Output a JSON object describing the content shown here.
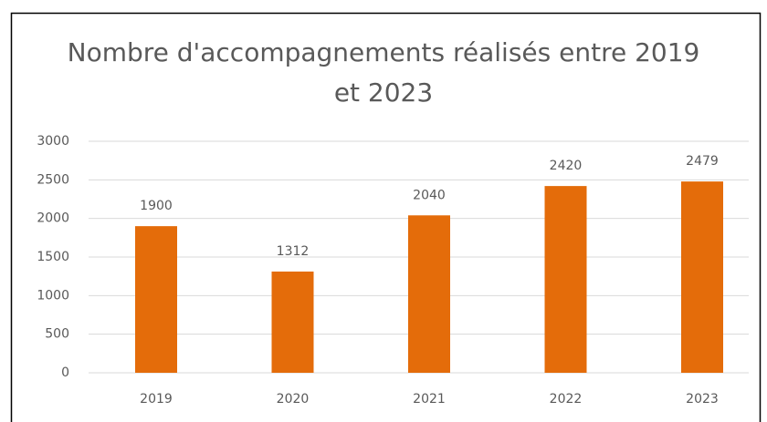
{
  "chart_data": {
    "type": "bar",
    "title": "Nombre d'accompagnements réalisés entre 2019 et 2023",
    "categories": [
      "2019",
      "2020",
      "2021",
      "2022",
      "2023"
    ],
    "values": [
      1900,
      1312,
      2040,
      2420,
      2479
    ],
    "color": "#e46c0a",
    "ylim": [
      0,
      3000
    ],
    "yticks": [
      0,
      500,
      1000,
      1500,
      2000,
      2500,
      3000
    ],
    "grid": true
  }
}
